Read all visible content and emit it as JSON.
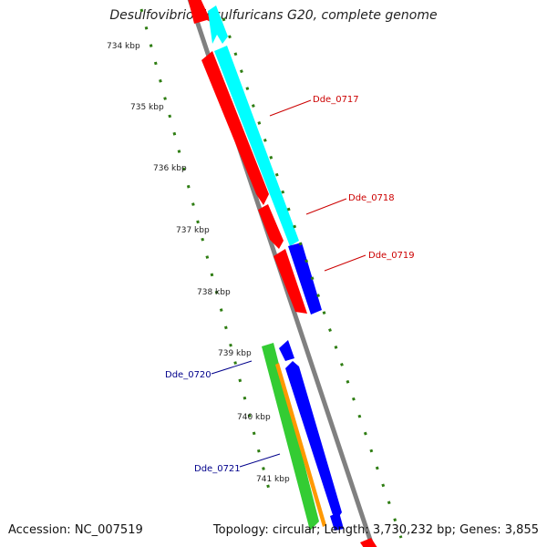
{
  "title": "Desulfovibrio desulfuricans G20, complete genome",
  "footer": {
    "accession": "Accession: NC_007519",
    "summary": "Topology: circular; Length: 3,730,232 bp; Genes: 3,855"
  },
  "ruler": {
    "labels": [
      "734 kbp",
      "735 kbp",
      "736 kbp",
      "737 kbp",
      "738 kbp",
      "739 kbp",
      "740 kbp",
      "741 kbp"
    ]
  },
  "genes": [
    {
      "name": "Dde_0717",
      "color": "#cc0000"
    },
    {
      "name": "Dde_0718",
      "color": "#cc0000"
    },
    {
      "name": "Dde_0719",
      "color": "#cc0000"
    },
    {
      "name": "Dde_0720",
      "color": "#00008b"
    },
    {
      "name": "Dde_0721",
      "color": "#00008b"
    }
  ],
  "colors": {
    "backbone": "#808080",
    "red_cds": "#ff0000",
    "cyan_feature": "#00ffff",
    "blue_feature": "#0000ff",
    "green_feature": "#33cc33",
    "orange_feature": "#ff9900",
    "tick": "#2e7d12"
  }
}
